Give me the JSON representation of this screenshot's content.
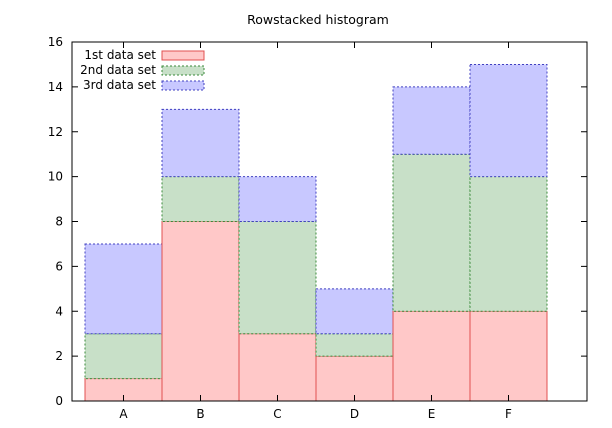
{
  "chart_data": {
    "type": "bar",
    "stacked": true,
    "title": "Rowstacked histogram",
    "xlabel": "",
    "ylabel": "",
    "categories": [
      "A",
      "B",
      "C",
      "D",
      "E",
      "F"
    ],
    "ylim": [
      0,
      16
    ],
    "yticks": [
      0,
      2,
      4,
      6,
      8,
      10,
      12,
      14,
      16
    ],
    "legend_position": "top-left",
    "grid": false,
    "series": [
      {
        "name": "1st data set",
        "values": [
          1,
          8,
          3,
          2,
          4,
          4
        ],
        "fill": "#ffc8c8",
        "stroke": "#e05050",
        "dashed": false
      },
      {
        "name": "2nd data set",
        "values": [
          2,
          2,
          5,
          1,
          7,
          6
        ],
        "fill": "#c8e0c8",
        "stroke": "#3a8a3a",
        "dashed": true
      },
      {
        "name": "3rd data set",
        "values": [
          4,
          3,
          2,
          2,
          3,
          5
        ],
        "fill": "#c8c8ff",
        "stroke": "#4040c0",
        "dashed": true
      }
    ]
  }
}
